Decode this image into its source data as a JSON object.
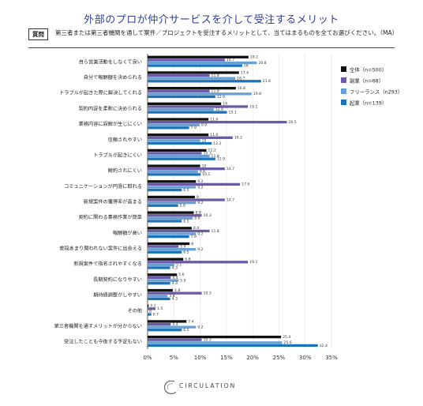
{
  "title": "外部のプロが仲介サービスを介して受注するメリット",
  "question": {
    "tag": "質問",
    "text": "第三者または第三者機関を通して案件／プロジェクトを受注するメリットとして、当てはまるものを全てお選びください。（MA）"
  },
  "logo": {
    "text": "CIRCULATION",
    "icon": "c-swirl-icon"
  },
  "chart_data": {
    "type": "bar",
    "orientation": "horizontal",
    "xlim": [
      0,
      35
    ],
    "ticks": [
      "0%",
      "5%",
      "10%",
      "15%",
      "20%",
      "25%",
      "30%",
      "35%"
    ],
    "grid": true,
    "legend_position": "right",
    "categories": [
      "自ら営業活動をしなくて良い",
      "自分で報酬額を決められる",
      "トラブルが起きた際に解決してくれる",
      "契約内容を柔軟に決められる",
      "業務内容に誤解が生じにくい",
      "信頼されやすい",
      "トラブルが起きにくい",
      "解約されにくい",
      "コミュニケーションが円滑に取れる",
      "新規案件の獲得率が高まる",
      "契約に関わる事務作業が簡単",
      "報酬額が高い",
      "普段あまり関われない案件に出会える",
      "新規案件で指名されやすくなる",
      "長期契約になりやすい",
      "期待値調整がしやすい",
      "その他",
      "第三者機関を通すメリットが分からない",
      "受注したことも今後する予定もない"
    ],
    "series": [
      {
        "name": "全体（n=500）",
        "color": "#111111",
        "values": [
          19.2,
          17.4,
          16.8,
          14.0,
          11.6,
          11.6,
          11.2,
          10.0,
          9.2,
          9.0,
          8.8,
          8.4,
          8.0,
          6.8,
          5.6,
          4.8,
          0.2,
          7.4,
          25.4
        ]
      },
      {
        "name": "副業（n=68）",
        "color": "#6b5aa6",
        "values": [
          14.7,
          11.8,
          11.8,
          19.1,
          26.5,
          16.2,
          10.3,
          14.7,
          17.6,
          14.7,
          10.3,
          11.8,
          5.9,
          19.1,
          4.4,
          10.3,
          1.5,
          4.4,
          10.3
        ]
      },
      {
        "name": "フリーランス（n293）",
        "color": "#6a9fd4",
        "values": [
          20.8,
          16.7,
          19.8,
          12.6,
          9.9,
          10.0,
          11.8,
          9.6,
          9.2,
          9.2,
          8.6,
          9.2,
          9.2,
          5.1,
          5.9,
          3.8,
          0.0,
          9.2,
          25.6
        ]
      },
      {
        "name": "起業（n=139）",
        "color": "#1b73b8",
        "values": [
          18.0,
          21.6,
          12.9,
          15.1,
          7.9,
          12.2,
          12.9,
          10.1,
          6.5,
          5.8,
          6.5,
          7.9,
          6.5,
          4.3,
          4.3,
          4.3,
          0.7,
          6.5,
          32.4
        ]
      }
    ],
    "data_labels": [
      [
        "19.2",
        "17.4",
        "16.8",
        "14",
        "11.6",
        "11.6",
        "11.2",
        "10",
        "9.2",
        "9",
        "8.8",
        "8.4",
        "8",
        "6.8",
        "5.6",
        "4.8",
        "0.2",
        "7.4",
        "25.4"
      ],
      [
        "14.7",
        "11.8",
        "11.8",
        "19.1",
        "26.5",
        "16.2",
        "10.3",
        "14.7",
        "17.6",
        "14.7",
        "10.3",
        "11.8",
        "5.9",
        "19.1",
        "4.4",
        "10.3",
        "1.5",
        "4.4",
        "10.3"
      ],
      [
        "20.8",
        "16.7",
        "19.8",
        "12.6",
        "9.9",
        "10",
        "11.8",
        "9.6",
        "9.2",
        "9.2",
        "8.6",
        "9.2",
        "9.2",
        "5.1",
        "5.9",
        "3.8",
        "0",
        "9.2",
        "25.6"
      ],
      [
        "18",
        "21.6",
        "12.9",
        "15.1",
        "7.9",
        "12.2",
        "12.9",
        "10.1",
        "6.5",
        "5.8",
        "6.5",
        "7.9",
        "6.5",
        "4.3",
        "4.3",
        "4.3",
        "0.7",
        "6.5",
        "32.4"
      ]
    ]
  }
}
